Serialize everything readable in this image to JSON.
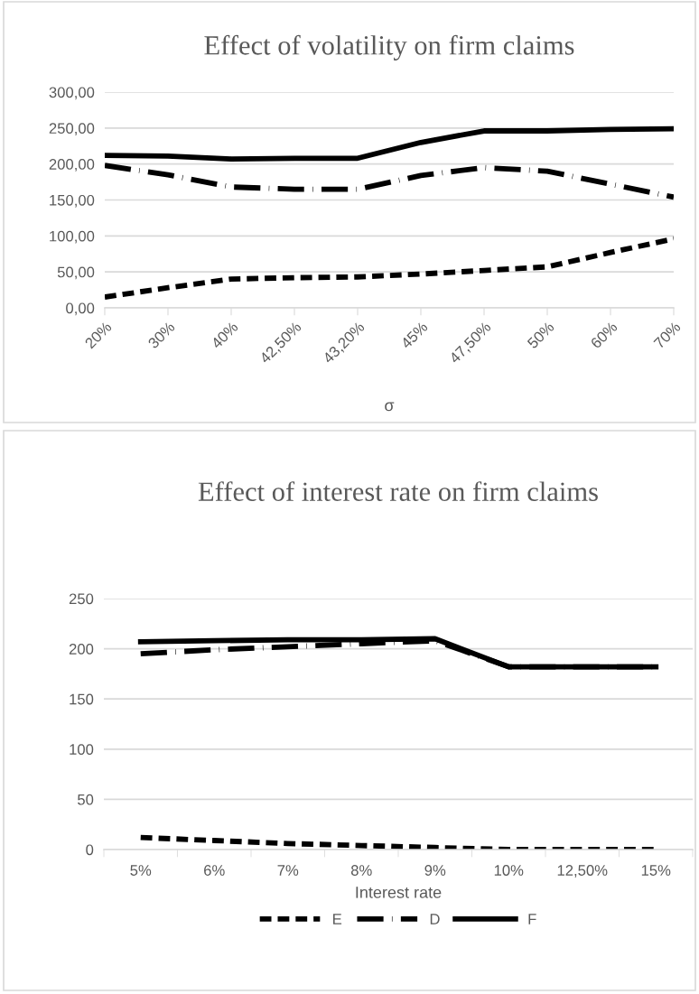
{
  "chart_data": [
    {
      "type": "line",
      "title": "Effect of volatility on firm claims",
      "xlabel": "σ",
      "categories": [
        "20%",
        "30%",
        "40%",
        "42,50%",
        "43,20%",
        "45%",
        "47,50%",
        "50%",
        "60%",
        "70%"
      ],
      "series": [
        {
          "color": "#000000",
          "line_style": "dotted",
          "values": [
            15,
            28,
            40,
            42,
            43,
            47,
            52,
            57,
            77,
            96
          ]
        },
        {
          "color": "#000000",
          "line_style": "dashed",
          "values": [
            198,
            185,
            168,
            165,
            165,
            184,
            195,
            190,
            172,
            154
          ]
        },
        {
          "color": "#000000",
          "line_style": "solid",
          "values": [
            212,
            211,
            207,
            208,
            208,
            230,
            246,
            246,
            248,
            249
          ]
        }
      ],
      "ylim": [
        0,
        300
      ],
      "yticks": [
        {
          "value": 0,
          "label": "0,00"
        },
        {
          "value": 50,
          "label": "50,00"
        },
        {
          "value": 100,
          "label": "100,00"
        },
        {
          "value": 150,
          "label": "150,00"
        },
        {
          "value": 200,
          "label": "200,00"
        },
        {
          "value": 250,
          "label": "250,00"
        },
        {
          "value": 300,
          "label": "300,00"
        }
      ],
      "grid": "y",
      "legend": false,
      "marker": "none"
    },
    {
      "type": "line",
      "title": "Effect of interest rate on firm claims",
      "xlabel": "Interest rate",
      "categories": [
        "5%",
        "6%",
        "7%",
        "8%",
        "9%",
        "10%",
        "12,50%",
        "15%"
      ],
      "series": [
        {
          "name": "E",
          "color": "#000000",
          "line_style": "dotted",
          "values": [
            12,
            9,
            6,
            4,
            2,
            0,
            0,
            0
          ]
        },
        {
          "name": "D",
          "color": "#000000",
          "line_style": "dashed",
          "values": [
            195,
            199,
            202,
            205,
            208,
            182,
            182,
            182
          ]
        },
        {
          "name": "F",
          "color": "#000000",
          "line_style": "solid",
          "values": [
            207,
            208,
            209,
            209,
            210,
            182,
            182,
            182
          ]
        }
      ],
      "ylim": [
        0,
        250
      ],
      "yticks": [
        0,
        50,
        100,
        150,
        200,
        250
      ],
      "grid": "y",
      "legend": "bottom",
      "marker": "none"
    }
  ]
}
